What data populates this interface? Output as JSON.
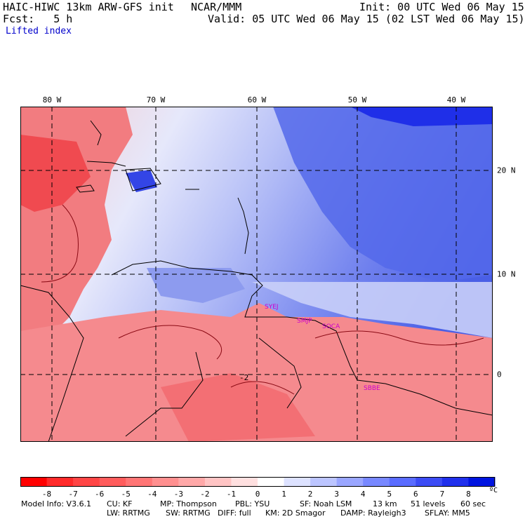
{
  "header": {
    "model_title": "HAIC-HIWC 13km ARW-GFS init",
    "org": "NCAR/MMM",
    "init": "Init: 00 UTC Wed 06 May 15",
    "fcst": "Fcst:   5 h",
    "valid": "Valid: 05 UTC Wed 06 May 15 (02 LST Wed 06 May 15)",
    "field": "Lifted index"
  },
  "map": {
    "lon_labels": [
      "80 W",
      "70 W",
      "60 W",
      "50 W",
      "40 W"
    ],
    "lat_labels": [
      "20 N",
      "10 N",
      "0"
    ],
    "stations": [
      "SYEJ",
      "SMJP",
      "SOCA",
      "SBBE"
    ],
    "contour_label": "-2"
  },
  "colorbar": {
    "labels": [
      "-8",
      "-7",
      "-6",
      "-5",
      "-4",
      "-3",
      "-2",
      "-1",
      "0",
      "1",
      "2",
      "3",
      "4",
      "5",
      "6",
      "7",
      "8"
    ],
    "unit": "ºC",
    "colors": [
      "#ff0000",
      "#ff2a2a",
      "#ff4545",
      "#ff5c5c",
      "#ff7575",
      "#ff8f8f",
      "#ffa8a8",
      "#ffc4c4",
      "#ffe0e0",
      "#ffffff",
      "#dde2ff",
      "#bcc5ff",
      "#9aa6ff",
      "#7888ff",
      "#5a6cff",
      "#3c4cf5",
      "#2030ec",
      "#0014e0"
    ]
  },
  "footer": {
    "line1": [
      "Model Info: V3.6.1",
      "CU: KF",
      "MP: Thompson",
      "PBL: YSU",
      "SF: Noah LSM",
      "13 km",
      "51 levels",
      "60 sec"
    ],
    "line2": [
      "LW: RRTMG",
      "SW: RRTMG",
      "DIFF: full",
      "KM: 2D Smagor",
      "DAMP: Rayleigh3",
      "SFLAY: MM5"
    ]
  }
}
